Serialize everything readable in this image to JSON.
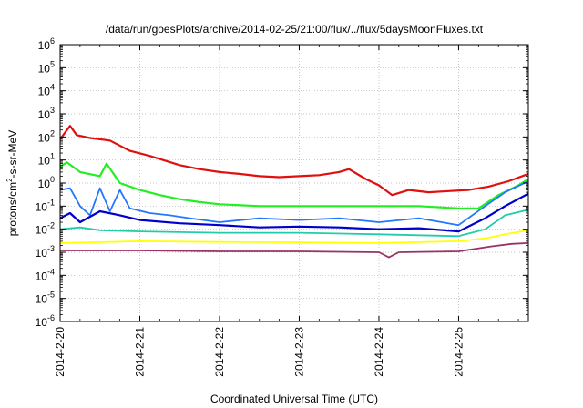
{
  "chart_data": {
    "type": "line",
    "title": "/data/run/goesPlots/archive/2014-02-25/21:00/flux/../flux/5daysMoonFluxes.txt",
    "xlabel": "Coordinated Universal Time (UTC)",
    "ylabel_parts": [
      "protons/cm",
      "2",
      "-s-sr-MeV"
    ],
    "x_range": [
      "2014-02-20T00:00",
      "2014-02-25T21:00"
    ],
    "x_ticks": [
      "2014-2-20",
      "2014-2-21",
      "2014-2-22",
      "2014-2-23",
      "2014-2-24",
      "2014-2-25"
    ],
    "y_scale": "log",
    "y_range": [
      1e-06,
      1000000.0
    ],
    "y_ticks": [
      {
        "base": "10",
        "exp": "-6"
      },
      {
        "base": "10",
        "exp": "-5"
      },
      {
        "base": "10",
        "exp": "-4"
      },
      {
        "base": "10",
        "exp": "-3"
      },
      {
        "base": "10",
        "exp": "-2"
      },
      {
        "base": "10",
        "exp": "-1"
      },
      {
        "base": "10",
        "exp": "0"
      },
      {
        "base": "10",
        "exp": "1"
      },
      {
        "base": "10",
        "exp": "2"
      },
      {
        "base": "10",
        "exp": "3"
      },
      {
        "base": "10",
        "exp": "4"
      },
      {
        "base": "10",
        "exp": "5"
      },
      {
        "base": "10",
        "exp": "6"
      }
    ],
    "grid": true,
    "series": [
      {
        "color": "#e01010",
        "width": 2.2,
        "points": [
          [
            "2014-02-20T00:00",
            80
          ],
          [
            "2014-02-20T03:00",
            300
          ],
          [
            "2014-02-20T05:00",
            120
          ],
          [
            "2014-02-20T09:00",
            90
          ],
          [
            "2014-02-20T15:00",
            70
          ],
          [
            "2014-02-20T21:00",
            25
          ],
          [
            "2014-02-21T03:00",
            15
          ],
          [
            "2014-02-21T07:00",
            10
          ],
          [
            "2014-02-21T12:00",
            6
          ],
          [
            "2014-02-21T18:00",
            4
          ],
          [
            "2014-02-22T00:00",
            3
          ],
          [
            "2014-02-22T06:00",
            2.5
          ],
          [
            "2014-02-22T12:00",
            2
          ],
          [
            "2014-02-22T18:00",
            1.8
          ],
          [
            "2014-02-23T00:00",
            2
          ],
          [
            "2014-02-23T06:00",
            2.2
          ],
          [
            "2014-02-23T12:00",
            3
          ],
          [
            "2014-02-23T15:00",
            4
          ],
          [
            "2014-02-23T20:00",
            1.5
          ],
          [
            "2014-02-24T00:00",
            0.8
          ],
          [
            "2014-02-24T04:00",
            0.3
          ],
          [
            "2014-02-24T09:00",
            0.5
          ],
          [
            "2014-02-24T15:00",
            0.4
          ],
          [
            "2014-02-24T21:00",
            0.45
          ],
          [
            "2014-02-25T03:00",
            0.5
          ],
          [
            "2014-02-25T09:00",
            0.7
          ],
          [
            "2014-02-25T15:00",
            1.2
          ],
          [
            "2014-02-25T21:00",
            2.5
          ]
        ]
      },
      {
        "color": "#22ee22",
        "width": 2.2,
        "points": [
          [
            "2014-02-20T00:00",
            5
          ],
          [
            "2014-02-20T02:00",
            8
          ],
          [
            "2014-02-20T06:00",
            3
          ],
          [
            "2014-02-20T12:00",
            2
          ],
          [
            "2014-02-20T14:00",
            7
          ],
          [
            "2014-02-20T18:00",
            1
          ],
          [
            "2014-02-21T00:00",
            0.5
          ],
          [
            "2014-02-21T06:00",
            0.3
          ],
          [
            "2014-02-21T12:00",
            0.2
          ],
          [
            "2014-02-21T18:00",
            0.15
          ],
          [
            "2014-02-22T00:00",
            0.12
          ],
          [
            "2014-02-22T12:00",
            0.1
          ],
          [
            "2014-02-23T00:00",
            0.1
          ],
          [
            "2014-02-23T12:00",
            0.1
          ],
          [
            "2014-02-24T00:00",
            0.1
          ],
          [
            "2014-02-24T12:00",
            0.1
          ],
          [
            "2014-02-25T00:00",
            0.08
          ],
          [
            "2014-02-25T06:00",
            0.08
          ],
          [
            "2014-02-25T12:00",
            0.3
          ],
          [
            "2014-02-25T18:00",
            0.8
          ],
          [
            "2014-02-25T21:00",
            1.5
          ]
        ]
      },
      {
        "color": "#2277ff",
        "width": 1.8,
        "points": [
          [
            "2014-02-20T00:00",
            0.5
          ],
          [
            "2014-02-20T03:00",
            0.6
          ],
          [
            "2014-02-20T06:00",
            0.1
          ],
          [
            "2014-02-20T09:00",
            0.04
          ],
          [
            "2014-02-20T12:00",
            0.6
          ],
          [
            "2014-02-20T15:00",
            0.06
          ],
          [
            "2014-02-20T18:00",
            0.5
          ],
          [
            "2014-02-20T21:00",
            0.08
          ],
          [
            "2014-02-21T03:00",
            0.05
          ],
          [
            "2014-02-21T09:00",
            0.04
          ],
          [
            "2014-02-21T15:00",
            0.03
          ],
          [
            "2014-02-22T00:00",
            0.02
          ],
          [
            "2014-02-22T12:00",
            0.03
          ],
          [
            "2014-02-23T00:00",
            0.025
          ],
          [
            "2014-02-23T12:00",
            0.03
          ],
          [
            "2014-02-24T00:00",
            0.02
          ],
          [
            "2014-02-24T12:00",
            0.03
          ],
          [
            "2014-02-25T00:00",
            0.015
          ],
          [
            "2014-02-25T08:00",
            0.1
          ],
          [
            "2014-02-25T14:00",
            0.4
          ],
          [
            "2014-02-25T21:00",
            1.2
          ]
        ]
      },
      {
        "color": "#0000cc",
        "width": 2.2,
        "points": [
          [
            "2014-02-20T00:00",
            0.03
          ],
          [
            "2014-02-20T03:00",
            0.05
          ],
          [
            "2014-02-20T06:00",
            0.02
          ],
          [
            "2014-02-20T12:00",
            0.06
          ],
          [
            "2014-02-20T18:00",
            0.04
          ],
          [
            "2014-02-21T00:00",
            0.025
          ],
          [
            "2014-02-21T12:00",
            0.018
          ],
          [
            "2014-02-22T00:00",
            0.015
          ],
          [
            "2014-02-22T12:00",
            0.012
          ],
          [
            "2014-02-23T00:00",
            0.013
          ],
          [
            "2014-02-23T12:00",
            0.012
          ],
          [
            "2014-02-24T00:00",
            0.01
          ],
          [
            "2014-02-24T12:00",
            0.011
          ],
          [
            "2014-02-25T00:00",
            0.008
          ],
          [
            "2014-02-25T08:00",
            0.03
          ],
          [
            "2014-02-25T14:00",
            0.1
          ],
          [
            "2014-02-25T21:00",
            0.35
          ]
        ]
      },
      {
        "color": "#22ccaa",
        "width": 1.8,
        "points": [
          [
            "2014-02-20T00:00",
            0.01
          ],
          [
            "2014-02-20T06:00",
            0.012
          ],
          [
            "2014-02-20T12:00",
            0.009
          ],
          [
            "2014-02-21T00:00",
            0.008
          ],
          [
            "2014-02-22T00:00",
            0.007
          ],
          [
            "2014-02-23T00:00",
            0.007
          ],
          [
            "2014-02-24T00:00",
            0.006
          ],
          [
            "2014-02-25T00:00",
            0.005
          ],
          [
            "2014-02-25T08:00",
            0.01
          ],
          [
            "2014-02-25T14:00",
            0.04
          ],
          [
            "2014-02-25T21:00",
            0.07
          ]
        ]
      },
      {
        "color": "#ffff00",
        "width": 1.8,
        "points": [
          [
            "2014-02-20T00:00",
            0.0025
          ],
          [
            "2014-02-21T00:00",
            0.003
          ],
          [
            "2014-02-22T00:00",
            0.0028
          ],
          [
            "2014-02-23T00:00",
            0.0027
          ],
          [
            "2014-02-24T00:00",
            0.0025
          ],
          [
            "2014-02-25T00:00",
            0.003
          ],
          [
            "2014-02-25T08:00",
            0.004
          ],
          [
            "2014-02-25T14:00",
            0.006
          ],
          [
            "2014-02-25T21:00",
            0.009
          ]
        ]
      },
      {
        "color": "#993366",
        "width": 1.8,
        "points": [
          [
            "2014-02-20T00:00",
            0.0012
          ],
          [
            "2014-02-21T00:00",
            0.0012
          ],
          [
            "2014-02-22T00:00",
            0.0011
          ],
          [
            "2014-02-23T00:00",
            0.0011
          ],
          [
            "2014-02-24T00:00",
            0.001
          ],
          [
            "2014-02-24T03:00",
            0.0006
          ],
          [
            "2014-02-24T06:00",
            0.001
          ],
          [
            "2014-02-25T00:00",
            0.0011
          ],
          [
            "2014-02-25T10:00",
            0.0018
          ],
          [
            "2014-02-25T16:00",
            0.0023
          ],
          [
            "2014-02-25T21:00",
            0.0025
          ]
        ]
      }
    ]
  }
}
